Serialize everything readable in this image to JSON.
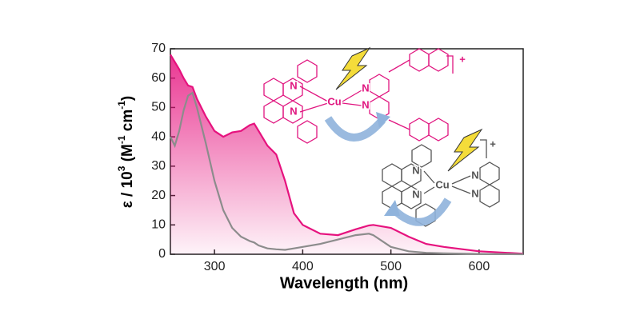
{
  "chart_data": {
    "type": "line",
    "xlabel": "Wavelength (nm)",
    "ylabel_parts": [
      "ε / 10",
      "3",
      " (M",
      "-1",
      " cm",
      "-1",
      ")"
    ],
    "x": [
      250,
      255,
      260,
      265,
      270,
      275,
      280,
      290,
      300,
      310,
      320,
      330,
      340,
      345,
      350,
      360,
      370,
      380,
      390,
      400,
      420,
      440,
      460,
      475,
      480,
      500,
      520,
      540,
      560,
      600,
      650
    ],
    "series": [
      {
        "color": "#e6127e",
        "fill": true,
        "values": [
          68,
          65.5,
          63,
          60,
          57.5,
          57,
          53,
          47,
          42,
          40,
          41.5,
          42,
          44,
          44.5,
          42,
          37,
          34,
          25,
          14,
          10,
          7,
          6.5,
          8.5,
          9.8,
          10,
          9,
          6,
          3.5,
          2.5,
          1,
          0.2
        ]
      },
      {
        "color": "#8c8c8c",
        "fill": false,
        "values": [
          40,
          37,
          42,
          49,
          54,
          55,
          50,
          38,
          25,
          15,
          9,
          6,
          4.5,
          4,
          3,
          2,
          1.7,
          1.5,
          2,
          2.5,
          3.5,
          5,
          6.5,
          7,
          6.5,
          2.5,
          1,
          0.5,
          0.3,
          0.1,
          0
        ]
      }
    ],
    "xlim": [
      250,
      650
    ],
    "ylim": [
      0,
      70
    ],
    "xticks": [
      300,
      400,
      500,
      600
    ],
    "yticks": [
      0,
      10,
      20,
      30,
      40,
      50,
      60,
      70
    ],
    "annotations": [
      "N",
      "N",
      "Cu",
      "N",
      "N",
      "+",
      "N",
      "N",
      "Cu",
      "N",
      "N",
      "+"
    ]
  }
}
